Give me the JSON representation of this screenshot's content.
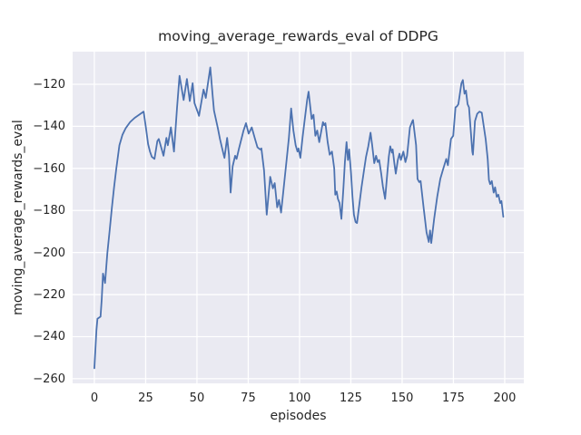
{
  "figure": {
    "background": "#ffffff"
  },
  "chart_data": {
    "type": "line",
    "title": "moving_average_rewards_eval of DDPG",
    "xlabel": "episodes",
    "ylabel": "moving_average_rewards_eval",
    "grid": true,
    "legend": false,
    "plot_bg_color": "#EAEAF2",
    "grid_color": "#FFFFFF",
    "line_color": "#4C72B0",
    "text_color": "#262626",
    "xlim": [
      -10.6,
      209.3
    ],
    "ylim": [
      -262.2,
      -104.5
    ],
    "xticks": [
      0,
      25,
      50,
      75,
      100,
      125,
      150,
      175,
      200
    ],
    "yticks": [
      -120,
      -140,
      -160,
      -180,
      -200,
      -220,
      -240,
      -260
    ],
    "series": [
      {
        "name": "moving_average_rewards_eval",
        "x": [
          0,
          1,
          1.5,
          3,
          3.6,
          4.2,
          5.2,
          6.3,
          7.5,
          8.5,
          9.6,
          10.7,
          12.2,
          13.7,
          15.2,
          17.4,
          19.6,
          21.1,
          24,
          25.1,
          26.2,
          27.1,
          28,
          29.3,
          30.7,
          31.4,
          33,
          33.7,
          35.1,
          35.8,
          37.3,
          38.8,
          40.3,
          41.5,
          43.5,
          45.1,
          46.5,
          47.9,
          48.8,
          50.3,
          51,
          53.2,
          54.3,
          56.5,
          57.7,
          58.3,
          60.2,
          61.2,
          62.4,
          63.4,
          64.7,
          65.6,
          66.4,
          67.4,
          68.6,
          69.3,
          70.5,
          72.7,
          73.9,
          75.2,
          76.7,
          78.3,
          79.5,
          80.8,
          81.4,
          82.7,
          84,
          85.7,
          87,
          87.9,
          89.1,
          90,
          91,
          92.3,
          93.8,
          94.8,
          95.9,
          97,
          98.1,
          99,
          99.5,
          100.4,
          101.5,
          102.5,
          103.7,
          104.4,
          105.2,
          105.9,
          106.8,
          107.7,
          108.6,
          109.6,
          111.4,
          112,
          112.6,
          113.7,
          114.7,
          115.8,
          116.9,
          117.4,
          118.1,
          118.7,
          119.5,
          120.4,
          121.4,
          122.1,
          122.9,
          123.6,
          124.2,
          125.1,
          125.8,
          126.5,
          127.3,
          128,
          129.1,
          130.2,
          131.4,
          132.4,
          133.5,
          134.6,
          135.4,
          136.4,
          137.3,
          138.1,
          138.8,
          139.8,
          140.6,
          141.7,
          142.8,
          143.5,
          144.2,
          145,
          145.4,
          146.2,
          146.9,
          147.9,
          148.7,
          149.4,
          150.6,
          151.6,
          152.4,
          153.8,
          155,
          155.3,
          156.8,
          157.5,
          158.3,
          159,
          160.5,
          161.9,
          163,
          163.6,
          164.2,
          165.6,
          167.1,
          168.6,
          170.1,
          171.5,
          172.3,
          173.8,
          174.9,
          176,
          176.7,
          177.4,
          178.9,
          179.6,
          180.4,
          181.1,
          181.9,
          182.6,
          184.2,
          184.5,
          185.5,
          186.6,
          187.7,
          188.8,
          190.7,
          191.7,
          192.3,
          192.9,
          193.7,
          194.6,
          195.3,
          196.1,
          196.9,
          197.8,
          198.4,
          199.3
        ],
        "y": [
          -255,
          -237,
          -231.5,
          -230.5,
          -222,
          -210,
          -214.5,
          -200.5,
          -189,
          -179,
          -169,
          -160,
          -149,
          -144,
          -141,
          -138,
          -136,
          -135,
          -133,
          -140.5,
          -148.5,
          -152,
          -154.5,
          -155.5,
          -147,
          -146,
          -151.5,
          -154,
          -145.5,
          -149,
          -140.5,
          -152,
          -131,
          -116,
          -127.5,
          -117.5,
          -128,
          -119.5,
          -129,
          -133,
          -135,
          -122.5,
          -126.5,
          -112,
          -126,
          -132.5,
          -141,
          -146,
          -151,
          -155,
          -145.5,
          -153.5,
          -171.5,
          -159,
          -154,
          -155.5,
          -150.5,
          -142,
          -138.5,
          -143.5,
          -140.5,
          -146,
          -150,
          -151,
          -150.5,
          -161,
          -182,
          -164,
          -169.5,
          -167,
          -178.5,
          -175,
          -181,
          -169,
          -155,
          -145.5,
          -131.5,
          -142,
          -149,
          -152,
          -150.5,
          -155,
          -145,
          -137,
          -127.5,
          -123.5,
          -130.5,
          -136.5,
          -134.5,
          -144.5,
          -142,
          -147.5,
          -138,
          -139.5,
          -138.5,
          -147.5,
          -153.5,
          -152,
          -160,
          -172.5,
          -171,
          -174.5,
          -176.5,
          -184,
          -169,
          -157,
          -147.5,
          -156,
          -151,
          -162.5,
          -173.5,
          -182,
          -185.5,
          -186,
          -177.5,
          -169,
          -161,
          -154.5,
          -149.5,
          -143,
          -149,
          -157.5,
          -154,
          -157,
          -156,
          -162.5,
          -168.5,
          -174.5,
          -162,
          -154.5,
          -149.5,
          -152.5,
          -151,
          -157.5,
          -162.5,
          -156,
          -153,
          -156,
          -152,
          -157,
          -154,
          -140.5,
          -137.5,
          -137,
          -149,
          -165,
          -166.5,
          -166,
          -179,
          -190.5,
          -195,
          -189.5,
          -195.5,
          -184,
          -173.5,
          -165,
          -160,
          -155.5,
          -158.5,
          -146,
          -144.5,
          -131,
          -130.5,
          -129.5,
          -119.5,
          -118,
          -124.5,
          -123,
          -129.5,
          -131,
          -152,
          -153.5,
          -137.5,
          -134,
          -133,
          -133.5,
          -146,
          -155.5,
          -165.5,
          -167.5,
          -166,
          -171.5,
          -169,
          -173.5,
          -172.5,
          -176.5,
          -175.5,
          -183
        ]
      }
    ]
  }
}
